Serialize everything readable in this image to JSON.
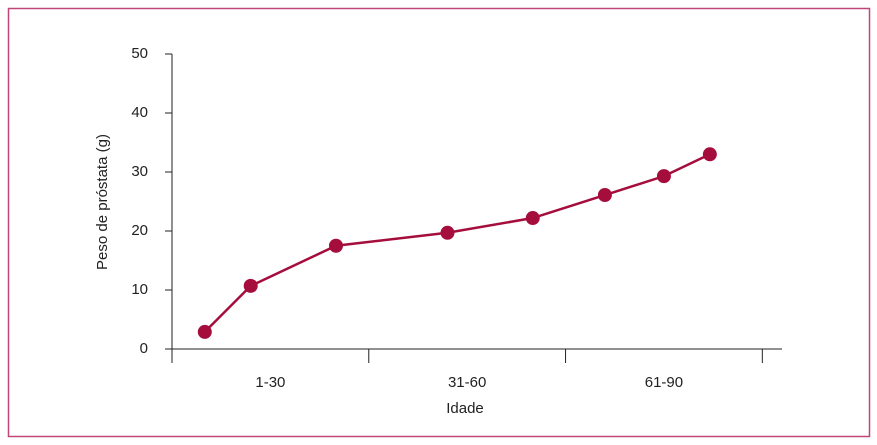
{
  "chart_data": {
    "type": "line",
    "x_label": "Idade",
    "y_label": "Peso de próstata (g)",
    "x": [
      5,
      12,
      25,
      42,
      55,
      66,
      75,
      82
    ],
    "series": [
      {
        "color": "#a50d3d",
        "values": [
          2.9,
          10.7,
          17.5,
          19.7,
          22.2,
          26.1,
          29.3,
          33.0
        ]
      }
    ],
    "categories": [
      "1-30",
      "31-60",
      "61-90"
    ],
    "xlim": [
      0,
      93
    ],
    "xticks": [
      0,
      30,
      60,
      90
    ],
    "ylim": [
      0,
      50
    ],
    "yticks": [
      0,
      10,
      20,
      30,
      40,
      50
    ],
    "grid": false
  }
}
